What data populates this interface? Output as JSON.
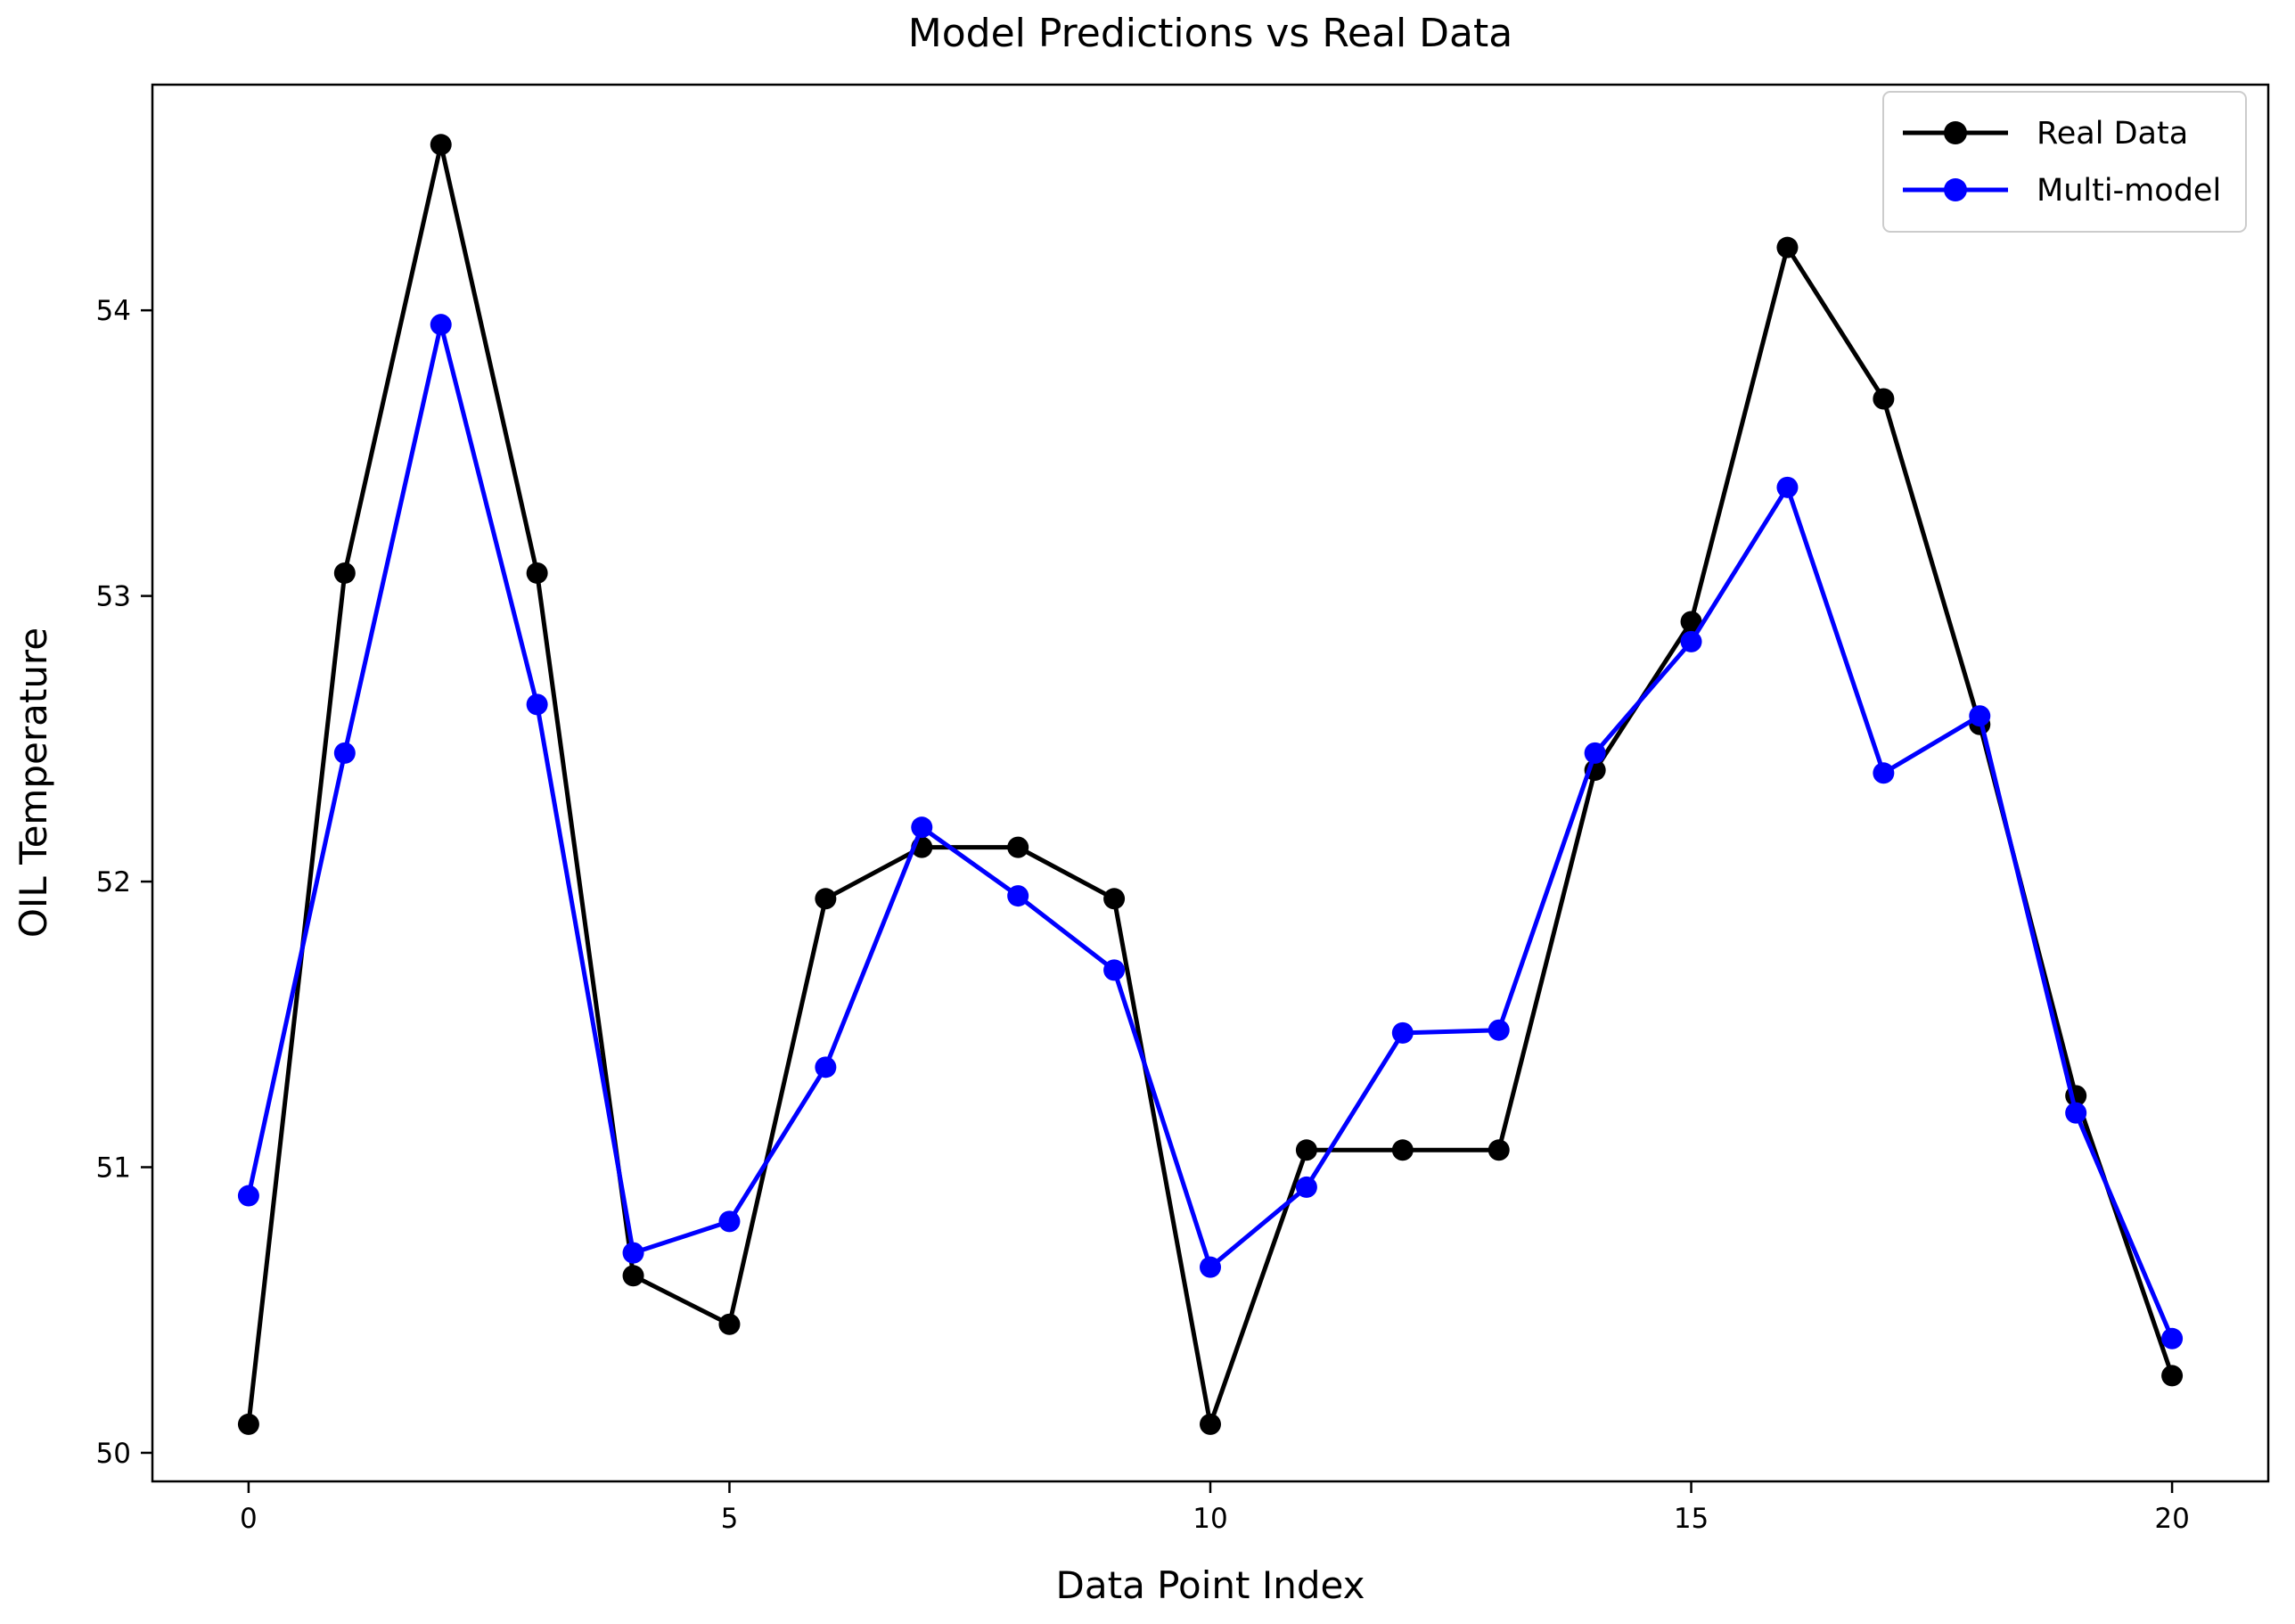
{
  "figure": {
    "background": "#ffffff",
    "spine_color": "#000000"
  },
  "chart_data": {
    "type": "line",
    "title": "Model Predictions vs Real Data",
    "xlabel": "Data Point Index",
    "ylabel": "OIL Temperature",
    "x": [
      0,
      1,
      2,
      3,
      4,
      5,
      6,
      7,
      8,
      9,
      10,
      11,
      12,
      13,
      14,
      15,
      16,
      17,
      18,
      19,
      20
    ],
    "series": [
      {
        "name": "Real Data",
        "color": "#000000",
        "marker": "circle",
        "values": [
          50.1,
          53.08,
          54.58,
          53.08,
          50.62,
          50.45,
          51.94,
          52.12,
          52.12,
          51.94,
          50.1,
          51.06,
          51.06,
          51.06,
          52.39,
          52.91,
          54.22,
          53.69,
          52.55,
          51.25,
          50.27
        ]
      },
      {
        "name": "Multi-model",
        "color": "#0000ff",
        "marker": "circle",
        "values": [
          50.9,
          52.45,
          53.95,
          52.62,
          50.7,
          50.81,
          51.35,
          52.19,
          51.95,
          51.69,
          50.65,
          50.93,
          51.47,
          51.48,
          52.45,
          52.84,
          53.38,
          52.38,
          52.58,
          51.19,
          50.4
        ]
      }
    ],
    "xlim": [
      -1,
      21
    ],
    "ylim": [
      49.9,
      54.79
    ],
    "xticks": [
      0,
      5,
      10,
      15,
      20
    ],
    "yticks": [
      50,
      51,
      52,
      53,
      54
    ],
    "grid": false,
    "legend_position": "upper right"
  }
}
